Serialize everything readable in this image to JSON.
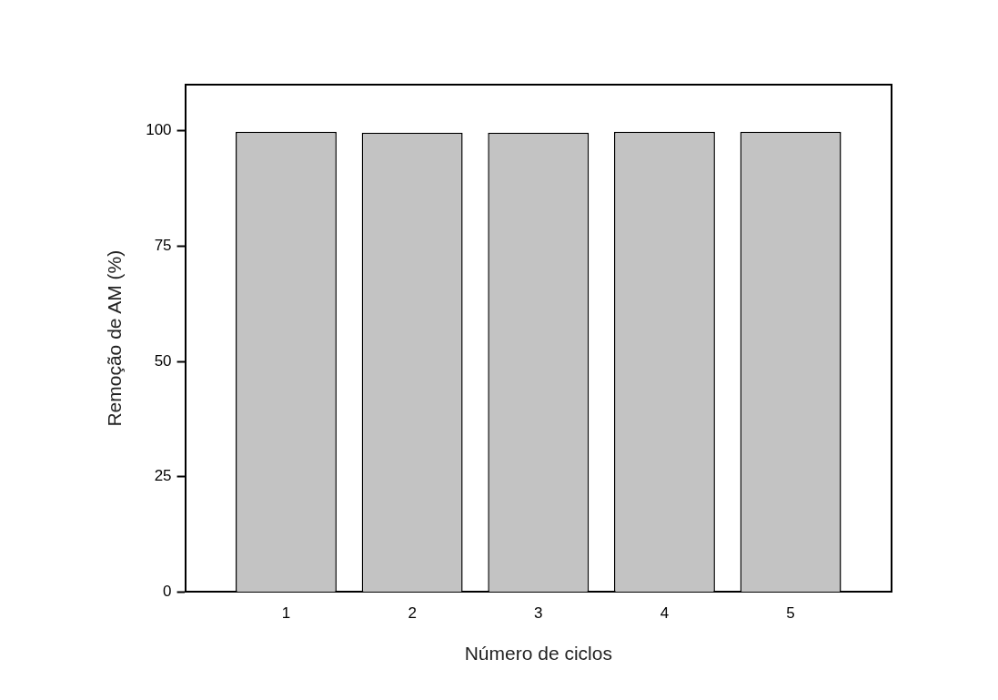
{
  "chart_data": {
    "type": "bar",
    "xlabel": "Número de ciclos",
    "ylabel": "Remoção de AM (%)",
    "x": [
      1,
      2,
      3,
      4,
      5
    ],
    "values": [
      99.8,
      99.6,
      99.6,
      99.8,
      99.8
    ],
    "color": "#c3c3c3",
    "xlim": [
      0.2,
      5.8
    ],
    "xticks": [
      1,
      2,
      3,
      4,
      5
    ],
    "ylim": [
      0,
      110
    ],
    "yticks": [
      0,
      25,
      50,
      75,
      100
    ],
    "grid": false,
    "legend": false
  }
}
